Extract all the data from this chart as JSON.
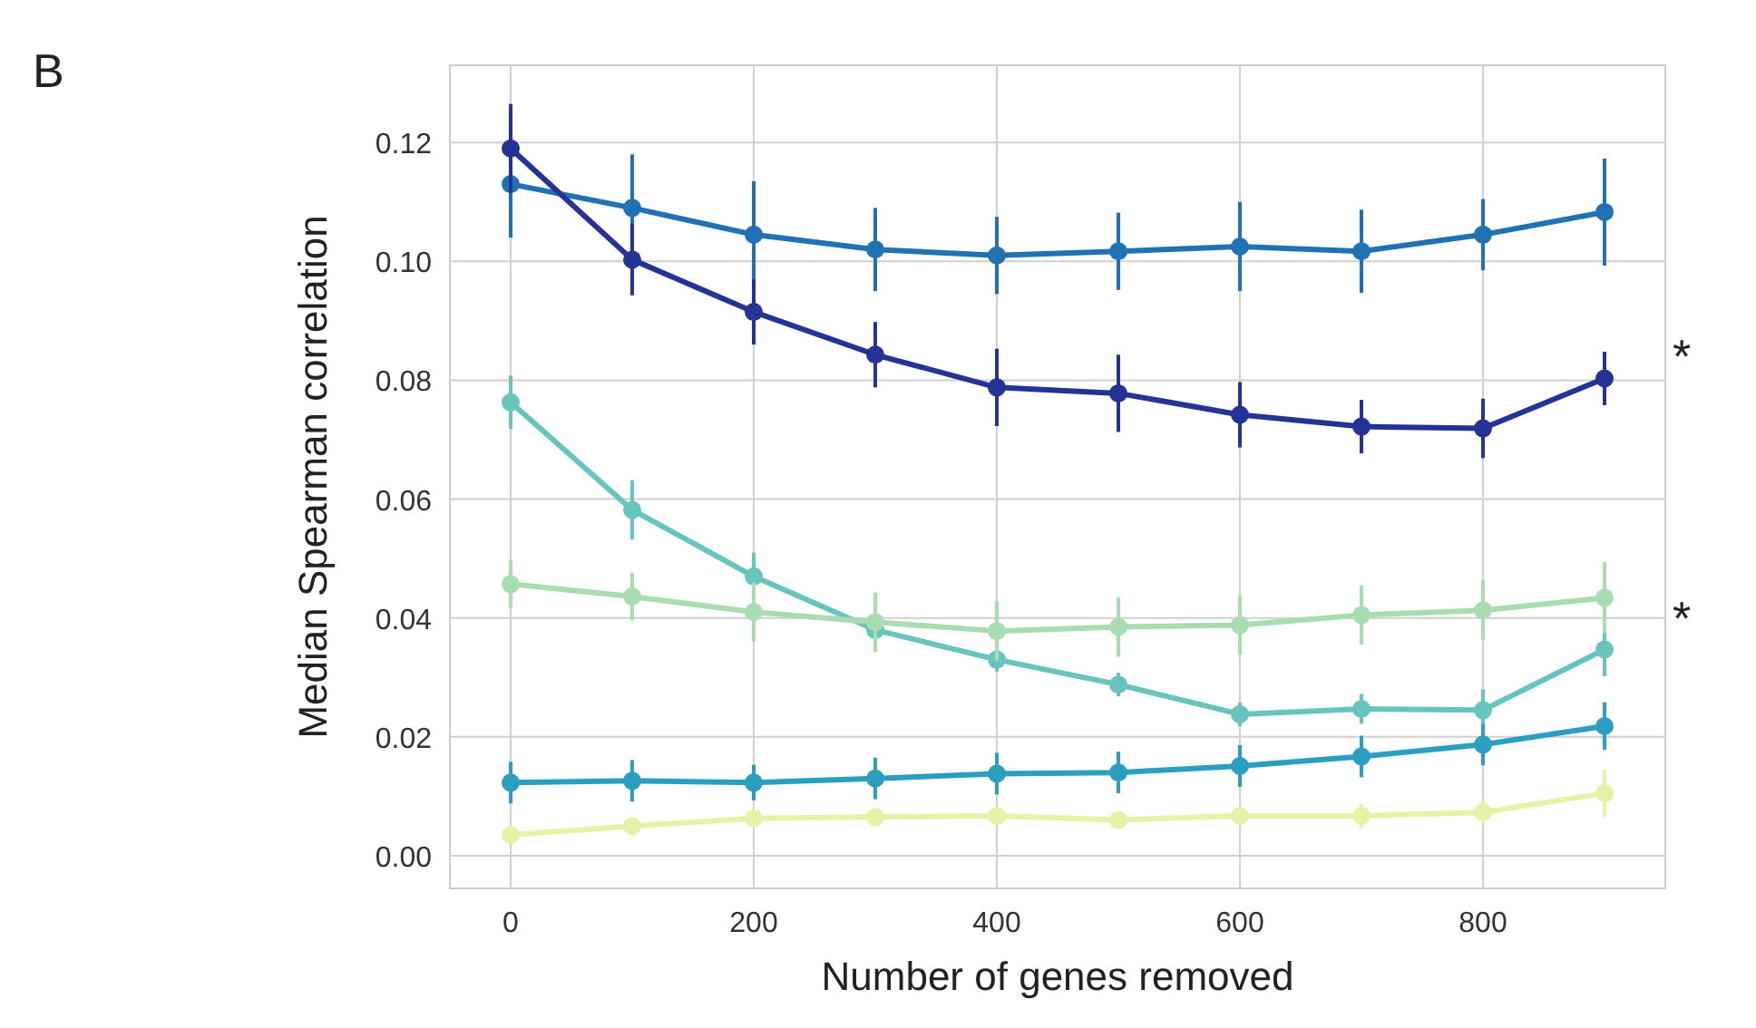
{
  "chart_data": {
    "type": "line",
    "xlabel": "Number of genes removed",
    "ylabel": "Median Spearman correlation",
    "x": [
      0,
      100,
      200,
      300,
      400,
      500,
      600,
      700,
      800,
      900
    ],
    "series": [
      {
        "color": "#2171b5",
        "values": [
          0.113,
          0.109,
          0.1045,
          0.102,
          0.101,
          0.1017,
          0.1025,
          0.1017,
          0.1045,
          0.1083
        ],
        "errors": [
          0.009,
          0.009,
          0.009,
          0.007,
          0.0065,
          0.0065,
          0.0075,
          0.007,
          0.006,
          0.009
        ]
      },
      {
        "color": "#253494",
        "values": [
          0.119,
          0.1003,
          0.0915,
          0.0843,
          0.0788,
          0.0778,
          0.0742,
          0.0722,
          0.0719,
          0.0803
        ],
        "errors": [
          0.0075,
          0.006,
          0.0055,
          0.0055,
          0.0065,
          0.0065,
          0.0055,
          0.0045,
          0.005,
          0.0045
        ]
      },
      {
        "color": "#67c5be",
        "values": [
          0.0763,
          0.0582,
          0.047,
          0.038,
          0.033,
          0.0288,
          0.0238,
          0.0247,
          0.0245,
          0.0347
        ],
        "errors": [
          0.0045,
          0.005,
          0.004,
          null,
          0.002,
          0.002,
          0.002,
          0.0025,
          0.0035,
          0.0045
        ]
      },
      {
        "color": "#a9dcb0",
        "values": [
          0.0457,
          0.0436,
          0.041,
          0.0393,
          0.0378,
          0.0385,
          0.0388,
          0.0405,
          0.0413,
          0.0434
        ],
        "errors": [
          0.004,
          0.004,
          0.005,
          0.005,
          0.005,
          0.005,
          0.005,
          0.005,
          0.005,
          0.006
        ]
      },
      {
        "color": "#2c9fc0",
        "values": [
          0.0123,
          0.0126,
          0.0123,
          0.013,
          0.0138,
          0.014,
          0.0151,
          0.0167,
          0.0187,
          0.0218
        ],
        "errors": [
          0.0035,
          0.0035,
          0.003,
          0.0035,
          0.0035,
          0.0035,
          0.0035,
          0.0035,
          0.0035,
          0.004
        ]
      },
      {
        "color": "#e6f2a5",
        "values": [
          0.0035,
          0.005,
          0.0063,
          0.0065,
          0.0067,
          0.006,
          0.0067,
          0.0067,
          0.0073,
          0.0105
        ],
        "errors": [
          0.0015,
          0.0015,
          0.0015,
          0.0015,
          0.0015,
          0.0015,
          0.0015,
          0.002,
          0.002,
          0.004
        ]
      }
    ],
    "xlim": [
      -50,
      950
    ],
    "ylim": [
      -0.0055,
      0.133
    ],
    "xticks": [
      0,
      200,
      400,
      600,
      800
    ],
    "yticks": [
      {
        "value": 0,
        "label": "0.00"
      },
      {
        "value": 0.02,
        "label": "0.02"
      },
      {
        "value": 0.04,
        "label": "0.04"
      },
      {
        "value": 0.06,
        "label": "0.06"
      },
      {
        "value": 0.08,
        "label": "0.08"
      },
      {
        "value": 0.1,
        "label": "0.10"
      },
      {
        "value": 0.12,
        "label": "0.12"
      }
    ],
    "grid": true,
    "marker": "circle",
    "line_style": "solid",
    "annotations": [
      "B",
      "*",
      "*"
    ]
  }
}
